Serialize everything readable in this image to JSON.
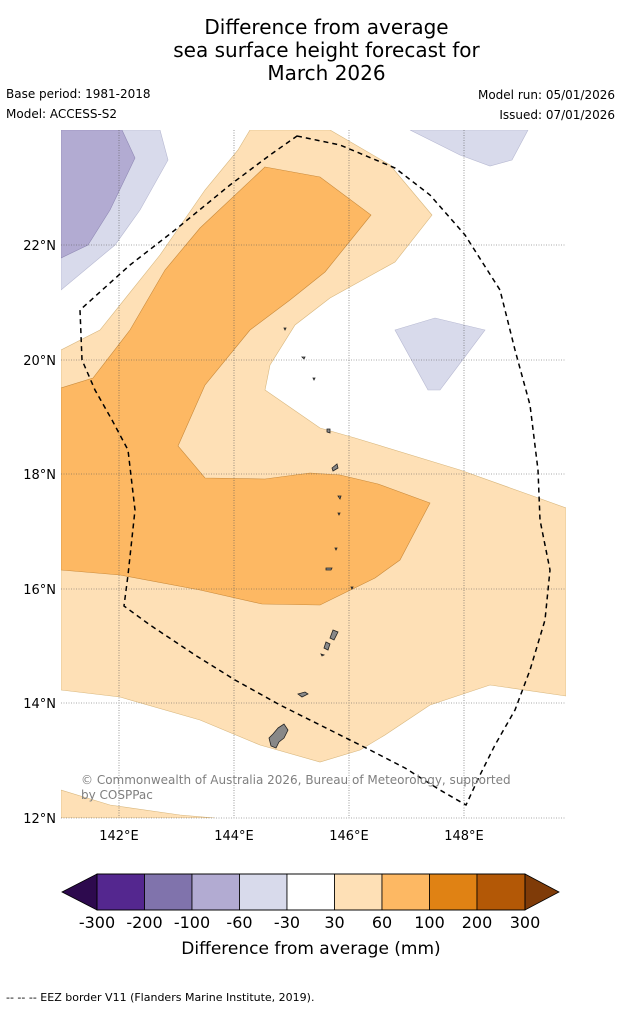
{
  "title": {
    "line1": "Difference from average",
    "line2": "sea surface height forecast for",
    "line3": "March 2026"
  },
  "meta": {
    "base_period": "Base period: 1981-2018",
    "model": "Model: ACCESS-S2",
    "model_run": "Model run: 05/01/2026",
    "issued": "Issued: 07/01/2026"
  },
  "map": {
    "lat_labels": [
      "22°N",
      "20°N",
      "18°N",
      "16°N",
      "14°N",
      "12°N"
    ],
    "lon_labels": [
      "142°E",
      "144°E",
      "146°E",
      "148°E"
    ],
    "copyright_line1": "© Commonwealth of Australia 2026, Bureau of Meteorology, supported",
    "copyright_line2": "by COSPPac"
  },
  "colorbar": {
    "ticks": [
      "-300",
      "-200",
      "-100",
      "-60",
      "-30",
      "30",
      "60",
      "100",
      "200",
      "300"
    ],
    "label": "Difference from average (mm)",
    "colors": [
      "#2d0a4e",
      "#54278f",
      "#8073ac",
      "#b2abd2",
      "#d8daeb",
      "#ffffff",
      "#fee0b6",
      "#fdb863",
      "#e08214",
      "#b35806",
      "#7f3b08"
    ]
  },
  "footer": {
    "eez_legend": "--  --  -- EEZ border V11 (Flanders Marine Institute, 2019)."
  }
}
